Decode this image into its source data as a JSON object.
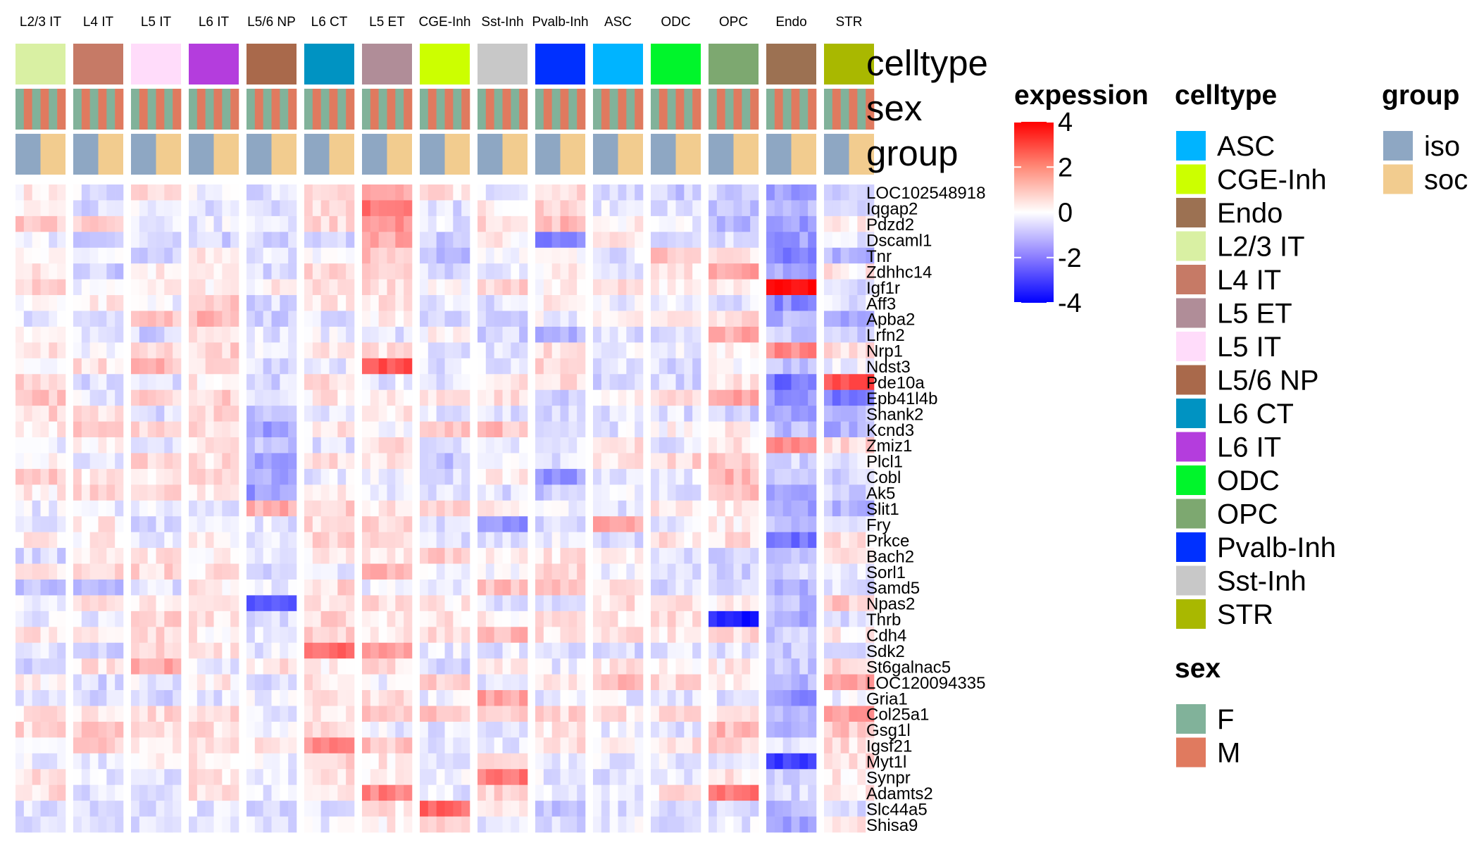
{
  "chart_data": {
    "type": "heatmap",
    "title": "",
    "column_groups": [
      "L2/3 IT",
      "L4 IT",
      "L5 IT",
      "L6 IT",
      "L5/6 NP",
      "L6 CT",
      "L5 ET",
      "CGE-Inh",
      "Sst-Inh",
      "Pvalb-Inh",
      "ASC",
      "ODC",
      "OPC",
      "Endo",
      "STR"
    ],
    "annotation_rows": [
      "celltype",
      "sex",
      "group"
    ],
    "genes": [
      "LOC102548918",
      "Iqgap2",
      "Pdzd2",
      "Dscaml1",
      "Tnr",
      "Zdhhc14",
      "Igf1r",
      "Aff3",
      "Apba2",
      "Lrfn2",
      "Nrp1",
      "Ndst3",
      "Pde10a",
      "Epb41l4b",
      "Shank2",
      "Kcnd3",
      "Zmiz1",
      "Plcl1",
      "Cobl",
      "Ak5",
      "Slit1",
      "Fry",
      "Prkce",
      "Bach2",
      "Sorl1",
      "Samd5",
      "Npas2",
      "Thrb",
      "Cdh4",
      "Sdk2",
      "St6galnac5",
      "LOC120094335",
      "Gria1",
      "Col25a1",
      "Gsg1l",
      "Igsf21",
      "Myt1l",
      "Synpr",
      "Adamts2",
      "Slc44a5",
      "Shisa9"
    ],
    "colorbar": {
      "title": "expession",
      "ticks": [
        4,
        2,
        0,
        -2,
        -4
      ],
      "range": [
        -4,
        4
      ],
      "low_color": "#0000ff",
      "mid_color": "#ffffff",
      "high_color": "#ff0000"
    },
    "values_note_free": true,
    "values": [
      [
        0.3,
        -0.4,
        0.6,
        -0.2,
        -0.5,
        0.7,
        1.2,
        0.4,
        -0.3,
        0.5,
        -0.6,
        -0.8,
        -0.7,
        -1.5,
        -0.9
      ],
      [
        0.1,
        -0.6,
        -0.3,
        -0.4,
        -0.7,
        0.5,
        2.2,
        -0.5,
        0.3,
        0.6,
        -0.3,
        -0.4,
        -0.9,
        -1.1,
        -0.6
      ],
      [
        0.9,
        0.6,
        -0.2,
        -0.3,
        -0.3,
        0.6,
        1.8,
        -0.4,
        0.7,
        1.0,
        0.2,
        -0.2,
        -1.0,
        -1.6,
        0.4
      ],
      [
        -0.3,
        -0.9,
        -0.5,
        -0.7,
        -0.7,
        -0.6,
        1.3,
        -0.8,
        0.2,
        -1.8,
        0.5,
        -0.4,
        -0.6,
        -1.5,
        -0.5
      ],
      [
        -0.1,
        -0.4,
        -0.6,
        0.5,
        -0.4,
        -0.2,
        0.9,
        -1.0,
        0.1,
        0.1,
        -0.4,
        0.9,
        0.3,
        -1.9,
        -1.2
      ],
      [
        0.4,
        -0.8,
        0.3,
        0.5,
        -0.5,
        0.6,
        0.8,
        -0.6,
        -0.4,
        0.3,
        -0.5,
        0.3,
        1.4,
        -1.3,
        0.3
      ],
      [
        0.6,
        -0.3,
        0.4,
        0.3,
        0.2,
        0.5,
        0.6,
        0.1,
        0.7,
        0.2,
        0.5,
        0.4,
        0.3,
        4.0,
        -0.5
      ],
      [
        0.2,
        0.3,
        -0.2,
        1.0,
        -0.6,
        0.3,
        0.5,
        -0.4,
        -0.5,
        0.3,
        -0.3,
        -0.4,
        -0.4,
        -1.8,
        -0.4
      ],
      [
        -0.4,
        -0.7,
        0.8,
        1.1,
        -0.8,
        -0.5,
        0.2,
        -0.8,
        -0.6,
        -0.2,
        0.5,
        0.4,
        0.6,
        -1.2,
        -1.3
      ],
      [
        0.3,
        -0.4,
        -0.7,
        0.5,
        -0.4,
        -0.2,
        -0.4,
        0.1,
        -0.7,
        -1.1,
        -0.5,
        -0.6,
        1.3,
        -0.8,
        -0.8
      ],
      [
        0.4,
        -0.2,
        0.6,
        0.7,
        -0.3,
        0.6,
        0.4,
        -0.3,
        -0.4,
        0.4,
        -0.2,
        -0.3,
        0.2,
        1.8,
        0.5
      ],
      [
        -0.2,
        0.5,
        1.1,
        0.6,
        -0.5,
        -0.3,
        2.6,
        -0.4,
        -0.3,
        0.6,
        -0.4,
        -0.6,
        0.1,
        -1.0,
        -0.3
      ],
      [
        0.6,
        -0.5,
        -0.4,
        0.3,
        -0.6,
        0.5,
        -0.4,
        -0.5,
        0.4,
        0.5,
        -0.6,
        -0.6,
        0.3,
        -2.2,
        2.8
      ],
      [
        0.9,
        -0.3,
        0.6,
        0.7,
        -0.5,
        0.3,
        0.4,
        0.6,
        0.5,
        -0.8,
        0.4,
        0.6,
        1.4,
        -1.7,
        -2.0
      ],
      [
        0.6,
        0.5,
        -0.5,
        0.6,
        -1.1,
        -0.4,
        0.4,
        -0.3,
        -0.4,
        -0.6,
        -0.4,
        -0.5,
        -0.7,
        -1.6,
        -0.9
      ],
      [
        0.3,
        0.7,
        0.5,
        0.5,
        -1.5,
        0.4,
        -0.2,
        0.9,
        1.0,
        -0.8,
        -0.4,
        0.1,
        0.2,
        -1.0,
        -1.3
      ],
      [
        -0.4,
        0.3,
        -0.3,
        0.4,
        -0.8,
        -0.4,
        0.6,
        -0.5,
        -0.3,
        -0.5,
        0.6,
        -0.4,
        0.4,
        1.6,
        0.6
      ],
      [
        0.3,
        -0.4,
        0.7,
        0.5,
        -1.3,
        0.5,
        0.4,
        -0.9,
        -0.3,
        -0.5,
        0.5,
        0.6,
        1.0,
        -0.7,
        -0.3
      ],
      [
        0.8,
        0.4,
        0.4,
        0.6,
        -1.3,
        -0.3,
        -0.3,
        -0.6,
        0.3,
        -1.6,
        -0.3,
        -0.4,
        1.2,
        -0.8,
        -0.6
      ],
      [
        0.3,
        0.6,
        0.5,
        0.5,
        -1.6,
        0.3,
        -0.4,
        -0.5,
        -0.5,
        -0.8,
        -0.3,
        -0.5,
        1.1,
        -1.2,
        -0.7
      ],
      [
        -0.3,
        -0.4,
        -0.4,
        -0.3,
        1.2,
        0.7,
        0.3,
        0.5,
        0.4,
        -0.3,
        -0.4,
        0.4,
        0.3,
        -1.3,
        -1.1
      ],
      [
        -0.4,
        0.3,
        -0.5,
        -0.4,
        -0.4,
        0.5,
        0.6,
        -0.4,
        -1.8,
        -0.5,
        1.4,
        -0.3,
        0.3,
        -1.0,
        -0.5
      ],
      [
        0.4,
        0.2,
        -0.3,
        0.2,
        -0.4,
        0.6,
        0.5,
        -0.4,
        -0.4,
        -0.3,
        -0.6,
        0.4,
        0.5,
        -2.3,
        0.4
      ],
      [
        -0.6,
        0.5,
        0.4,
        0.3,
        -0.5,
        0.3,
        0.4,
        0.9,
        0.3,
        0.4,
        0.4,
        -0.4,
        -0.6,
        -1.1,
        0.5
      ],
      [
        0.2,
        0.8,
        0.6,
        0.4,
        -0.5,
        -0.5,
        1.2,
        -0.4,
        -0.3,
        0.5,
        -0.3,
        -0.4,
        -0.8,
        -0.6,
        -0.3
      ],
      [
        -1.0,
        -1.2,
        -0.4,
        0.3,
        -0.3,
        0.6,
        -0.3,
        -0.4,
        1.0,
        1.1,
        0.3,
        -0.5,
        -0.7,
        -1.3,
        -0.5
      ],
      [
        -0.3,
        0.3,
        0.4,
        0.4,
        -2.6,
        0.3,
        0.5,
        0.3,
        -0.4,
        -0.5,
        0.5,
        0.3,
        0.2,
        -1.0,
        0.8
      ],
      [
        -0.4,
        -0.3,
        0.6,
        0.5,
        -0.5,
        0.6,
        0.3,
        0.4,
        0.3,
        0.4,
        0.3,
        0.5,
        -3.5,
        -1.2,
        -0.6
      ],
      [
        0.4,
        0.5,
        0.6,
        0.3,
        -0.4,
        0.6,
        0.4,
        0.5,
        1.1,
        0.4,
        0.5,
        0.3,
        0.6,
        -0.8,
        0.3
      ],
      [
        -0.5,
        -0.6,
        0.5,
        0.4,
        -0.3,
        2.5,
        1.4,
        -0.3,
        -0.4,
        -0.6,
        -0.6,
        -0.3,
        -0.4,
        -0.8,
        -0.4
      ],
      [
        -0.7,
        0.5,
        1.4,
        -0.3,
        0.4,
        0.3,
        0.5,
        -0.6,
        0.4,
        -0.3,
        0.4,
        0.3,
        0.3,
        -0.9,
        0.6
      ],
      [
        0.3,
        -0.6,
        -0.3,
        0.3,
        -0.5,
        0.5,
        -0.3,
        0.9,
        -0.4,
        0.3,
        1.0,
        0.6,
        0.4,
        -1.1,
        1.3
      ],
      [
        -0.4,
        -0.5,
        -0.6,
        -0.4,
        -0.3,
        0.5,
        0.5,
        -0.3,
        1.5,
        -0.4,
        -0.3,
        -0.5,
        -0.4,
        -1.7,
        -0.3
      ],
      [
        0.4,
        0.3,
        0.6,
        0.5,
        -0.4,
        0.5,
        0.8,
        0.9,
        1.0,
        0.6,
        0.4,
        0.4,
        0.5,
        -1.1,
        1.4
      ],
      [
        0.6,
        0.8,
        0.4,
        0.5,
        -0.3,
        0.7,
        -0.3,
        -0.4,
        -0.5,
        0.4,
        -0.3,
        -0.4,
        1.1,
        -1.0,
        0.9
      ],
      [
        0.3,
        0.7,
        0.5,
        0.6,
        0.4,
        1.8,
        0.9,
        -0.3,
        -0.4,
        0.5,
        0.3,
        0.4,
        0.7,
        -0.6,
        0.5
      ],
      [
        -0.3,
        -0.4,
        0.3,
        0.4,
        -0.3,
        0.7,
        0.4,
        -0.5,
        0.6,
        -0.4,
        -0.3,
        -0.3,
        -0.5,
        -3.0,
        0.6
      ],
      [
        0.4,
        -0.3,
        -0.5,
        0.4,
        -0.4,
        0.5,
        0.3,
        -0.3,
        2.2,
        -0.3,
        -0.4,
        -0.3,
        0.4,
        -0.9,
        0.3
      ],
      [
        0.5,
        -0.4,
        -0.6,
        0.5,
        -0.3,
        0.4,
        1.9,
        -0.4,
        0.6,
        -0.3,
        -0.3,
        0.4,
        2.3,
        -0.6,
        0.4
      ],
      [
        -0.5,
        -0.6,
        -0.7,
        -0.4,
        -0.5,
        -0.4,
        0.4,
        2.4,
        0.6,
        -0.8,
        -0.5,
        -0.5,
        -0.6,
        -1.2,
        -0.5
      ],
      [
        -0.4,
        -0.5,
        -0.6,
        -0.3,
        -0.4,
        -0.3,
        0.3,
        0.5,
        -0.4,
        -0.7,
        -0.3,
        -0.4,
        -0.4,
        -1.3,
        0.4
      ]
    ]
  },
  "legends": {
    "celltype": {
      "title": "celltype",
      "items": [
        {
          "label": "ASC",
          "color": "#00b4ff"
        },
        {
          "label": "CGE-Inh",
          "color": "#ccff00"
        },
        {
          "label": "Endo",
          "color": "#9c7152"
        },
        {
          "label": "L2/3 IT",
          "color": "#d9f0a3"
        },
        {
          "label": "L4 IT",
          "color": "#c67a66"
        },
        {
          "label": "L5 ET",
          "color": "#b08d98"
        },
        {
          "label": "L5 IT",
          "color": "#ffdcfa"
        },
        {
          "label": "L5/6 NP",
          "color": "#a9694b"
        },
        {
          "label": "L6 CT",
          "color": "#0093c2"
        },
        {
          "label": "L6 IT",
          "color": "#b43ddd"
        },
        {
          "label": "ODC",
          "color": "#00f52b"
        },
        {
          "label": "OPC",
          "color": "#7da870"
        },
        {
          "label": "Pvalb-Inh",
          "color": "#0030ff"
        },
        {
          "label": "Sst-Inh",
          "color": "#c8c8c8"
        },
        {
          "label": "STR",
          "color": "#a9b800"
        }
      ]
    },
    "sex": {
      "title": "sex",
      "items": [
        {
          "label": "F",
          "color": "#81b29a"
        },
        {
          "label": "M",
          "color": "#e07a5f"
        }
      ]
    },
    "group": {
      "title": "group",
      "items": [
        {
          "label": "iso",
          "color": "#8ea7c3"
        },
        {
          "label": "soc",
          "color": "#f2cc8f"
        }
      ]
    }
  }
}
